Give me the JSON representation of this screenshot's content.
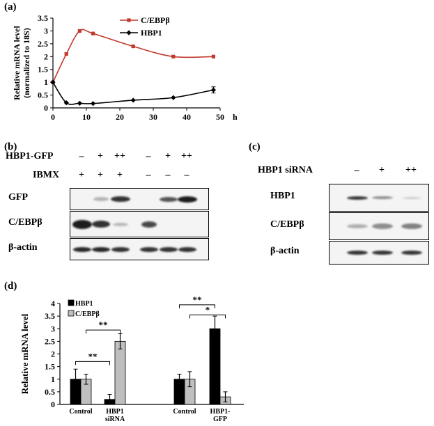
{
  "panel_a": {
    "label": "(a)",
    "unit": "h",
    "chart_data": {
      "type": "line",
      "title": "",
      "xlabel": "",
      "ylabel": "Relative mRNA level (normalized to 18S)",
      "ylabel_lines": [
        "Relative mRNA level",
        "(normalized to 18S)"
      ],
      "xlim": [
        0,
        50
      ],
      "ylim": [
        0,
        3.5
      ],
      "xticks": [
        "0",
        "10",
        "20",
        "30",
        "40",
        "50"
      ],
      "yticks": [
        "0",
        "0.5",
        "1",
        "1.5",
        "2",
        "2.5",
        "3",
        "3.5"
      ],
      "legend_position": "top-center",
      "series": [
        {
          "name": "C/EBPβ",
          "color": "#c0392b",
          "marker": "square",
          "x": [
            0,
            4,
            8,
            12,
            24,
            36,
            48
          ],
          "y": [
            1.0,
            2.1,
            3.0,
            2.9,
            2.4,
            2.0,
            2.0
          ]
        },
        {
          "name": "HBP1",
          "color": "#000000",
          "marker": "diamond",
          "x": [
            0,
            4,
            8,
            12,
            24,
            36,
            48
          ],
          "y": [
            1.0,
            0.2,
            0.18,
            0.17,
            0.3,
            0.4,
            0.7
          ],
          "err": [
            0,
            0,
            0,
            0,
            0,
            0,
            0.12
          ]
        }
      ]
    }
  },
  "panel_b": {
    "label": "(b)",
    "conditions": [
      {
        "label": "HBP1-GFP",
        "signs": [
          "–",
          "+",
          "++",
          "–",
          "+",
          "++"
        ]
      },
      {
        "label": "IBMX",
        "signs": [
          "+",
          "+",
          "+",
          "–",
          "–",
          "–"
        ]
      }
    ],
    "blots": [
      "GFP",
      "C/EBPβ",
      "β-actin"
    ]
  },
  "panel_c": {
    "label": "(c)",
    "condition": {
      "label": "HBP1 siRNA",
      "signs": [
        "–",
        "+",
        "++"
      ]
    },
    "blots": [
      "HBP1",
      "C/EBPβ",
      "β-actin"
    ]
  },
  "panel_d": {
    "label": "(d)",
    "chart_data": {
      "type": "bar",
      "title": "",
      "xlabel": "",
      "ylabel": "Relative mRNA level",
      "ylim": [
        0,
        4
      ],
      "yticks": [
        "0",
        "0.5",
        "1",
        "1.5",
        "2",
        "2.5",
        "3",
        "3.5",
        "4"
      ],
      "legend_position": "top-left",
      "groups": [
        {
          "label_lines": [
            "Control"
          ]
        },
        {
          "label_lines": [
            "HBP1",
            "siRNA"
          ]
        },
        {
          "label_lines": [
            "Control"
          ]
        },
        {
          "label_lines": [
            "HBP1-",
            "GFP"
          ]
        }
      ],
      "series": [
        {
          "name": "HBP1",
          "color": "#000000",
          "values": [
            1.0,
            0.2,
            1.0,
            3.0
          ],
          "err": [
            0.4,
            0.2,
            0.2,
            0.5
          ]
        },
        {
          "name": "C/EBPβ",
          "color": "#bfbfbf",
          "values": [
            1.0,
            2.5,
            1.0,
            0.3
          ],
          "err": [
            0.2,
            0.3,
            0.3,
            0.2
          ]
        }
      ],
      "significance": [
        {
          "text": "**",
          "from_group": 0,
          "from_series": 0,
          "to_group": 1,
          "to_series": 0,
          "y": 1.7
        },
        {
          "text": "**",
          "from_group": 0,
          "from_series": 1,
          "to_group": 1,
          "to_series": 1,
          "y": 2.95
        },
        {
          "text": "**",
          "from_group": 2,
          "from_series": 0,
          "to_group": 3,
          "to_series": 0,
          "y": 3.95
        },
        {
          "text": "*",
          "from_group": 2,
          "from_series": 1,
          "to_group": 3,
          "to_series": 1,
          "y": 3.55
        }
      ]
    }
  }
}
